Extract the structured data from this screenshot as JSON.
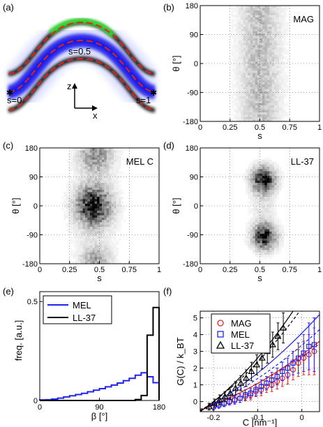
{
  "panel_labels": [
    "(a)",
    "(b)",
    "(c)",
    "(d)",
    "(e)",
    "(f)"
  ],
  "panel_a": {
    "labels": {
      "s0": "s=0",
      "s05": "s=0.5",
      "s1": "s=1",
      "z": "z",
      "x": "x"
    }
  },
  "colors": {
    "red": "#e8221b",
    "blue": "#2222ee",
    "green": "#22cc22",
    "black": "#000000"
  },
  "chart_data": [
    {
      "panel": "b",
      "type": "heatmap",
      "annotation": "MAG",
      "xlabel": "s",
      "ylabel": "θ [°]",
      "xlim": [
        0,
        1
      ],
      "ylim": [
        -180,
        180
      ],
      "xticks": [
        "0",
        "0.25",
        "0.5",
        "0.75",
        "1"
      ],
      "yticks": [
        "-180",
        "-90",
        "0",
        "90",
        "180"
      ],
      "blobs": [
        {
          "s": 0.5,
          "theta": 0,
          "ws": 0.11,
          "wt": 400,
          "amp": 0.28
        }
      ]
    },
    {
      "panel": "c",
      "type": "heatmap",
      "annotation": "MEL C",
      "xlabel": "s",
      "ylabel": "θ [°]",
      "xlim": [
        0,
        1
      ],
      "ylim": [
        -180,
        180
      ],
      "xticks": [
        "0",
        "0.25",
        "0.5",
        "0.75",
        "1"
      ],
      "yticks": [
        "-180",
        "-90",
        "0",
        "90",
        "180"
      ],
      "blobs": [
        {
          "s": 0.45,
          "theta": 0,
          "ws": 0.09,
          "wt": 38,
          "amp": 0.95
        },
        {
          "s": 0.47,
          "theta": 160,
          "ws": 0.09,
          "wt": 35,
          "amp": 0.45
        },
        {
          "s": 0.47,
          "theta": -165,
          "ws": 0.08,
          "wt": 25,
          "amp": 0.35
        },
        {
          "s": 0.46,
          "theta": 0,
          "ws": 0.13,
          "wt": 120,
          "amp": 0.12
        }
      ]
    },
    {
      "panel": "d",
      "type": "heatmap",
      "annotation": "LL-37",
      "xlabel": "s",
      "ylabel": "θ [°]",
      "xlim": [
        0,
        1
      ],
      "ylim": [
        -180,
        180
      ],
      "xticks": [
        "0",
        "0.25",
        "0.5",
        "0.75",
        "1"
      ],
      "yticks": [
        "-180",
        "-90",
        "0",
        "90",
        "180"
      ],
      "blobs": [
        {
          "s": 0.53,
          "theta": 82,
          "ws": 0.065,
          "wt": 26,
          "amp": 1.0
        },
        {
          "s": 0.54,
          "theta": -95,
          "ws": 0.065,
          "wt": 26,
          "amp": 1.0
        },
        {
          "s": 0.53,
          "theta": 0,
          "ws": 0.07,
          "wt": 40,
          "amp": 0.12
        }
      ]
    },
    {
      "panel": "e",
      "type": "line",
      "xlabel": "β [°]",
      "ylabel": "freq. [a.u.]",
      "xlim": [
        0,
        180
      ],
      "ylim": [
        0,
        0.55
      ],
      "xticks": [
        0,
        90,
        180
      ],
      "yticks": [
        0,
        0.5
      ],
      "series": [
        {
          "name": "MEL",
          "color": "#2222ee",
          "edges": [
            0,
            9,
            18,
            27,
            36,
            45,
            54,
            63,
            72,
            81,
            90,
            99,
            108,
            117,
            126,
            135,
            144,
            153,
            162,
            171,
            180
          ],
          "values": [
            0.003,
            0.004,
            0.007,
            0.012,
            0.018,
            0.024,
            0.03,
            0.036,
            0.044,
            0.052,
            0.06,
            0.069,
            0.078,
            0.088,
            0.1,
            0.112,
            0.128,
            0.14,
            0.12,
            0.09
          ]
        },
        {
          "name": "LL-37",
          "color": "#000000",
          "edges": [
            0,
            9,
            18,
            27,
            36,
            45,
            54,
            63,
            72,
            81,
            90,
            99,
            108,
            117,
            126,
            135,
            144,
            153,
            162,
            171,
            180
          ],
          "values": [
            0,
            0,
            0,
            0,
            0,
            0,
            0,
            0,
            0,
            0,
            0,
            0,
            0,
            0,
            0,
            0,
            0.005,
            0.025,
            0.33,
            0.47
          ]
        }
      ]
    },
    {
      "panel": "f",
      "type": "scatter",
      "xlabel": "C [nm⁻¹]",
      "ylabel": "G(C) / k_BT",
      "xlim": [
        -0.23,
        0.04
      ],
      "ylim": [
        -0.6,
        5.4
      ],
      "xticks": [
        -0.2,
        -0.1,
        0
      ],
      "yticks": [
        0,
        1,
        2,
        3,
        4,
        5
      ],
      "series": [
        {
          "name": "MAG",
          "marker": "circle",
          "color": "#e8221b",
          "x": [
            -0.2,
            -0.188,
            -0.176,
            -0.164,
            -0.152,
            -0.14,
            -0.128,
            -0.116,
            -0.104,
            -0.092,
            -0.08,
            -0.068,
            -0.056,
            -0.044,
            -0.032,
            -0.02,
            -0.008,
            0.004,
            0.016,
            0.028
          ],
          "y": [
            -0.3,
            -0.2,
            -0.1,
            0.0,
            0.1,
            0.2,
            0.3,
            0.4,
            0.6,
            0.7,
            0.9,
            1.0,
            1.2,
            1.4,
            1.6,
            1.9,
            2.3,
            2.6,
            2.8,
            3.0
          ],
          "err": [
            0.2,
            0.2,
            0.2,
            0.2,
            0.2,
            0.25,
            0.25,
            0.3,
            0.3,
            0.35,
            0.35,
            0.4,
            0.45,
            0.5,
            0.55,
            0.6,
            0.8,
            1.0,
            1.2,
            1.4
          ],
          "fit_solid": [
            [
              -0.23,
              -0.52
            ],
            [
              0.04,
              3.6
            ]
          ],
          "fit_dashed": [
            [
              -0.23,
              -0.45
            ],
            [
              0.04,
              3.45
            ]
          ]
        },
        {
          "name": "MEL",
          "marker": "square",
          "color": "#2222ee",
          "x": [
            -0.2,
            -0.188,
            -0.176,
            -0.164,
            -0.152,
            -0.14,
            -0.128,
            -0.116,
            -0.104,
            -0.092,
            -0.08,
            -0.068,
            -0.056,
            -0.044,
            -0.032,
            -0.02,
            -0.008,
            0.004,
            0.016,
            0.028
          ],
          "y": [
            -0.3,
            -0.2,
            -0.1,
            0.0,
            0.1,
            0.2,
            0.4,
            0.5,
            0.7,
            0.9,
            1.1,
            1.3,
            1.5,
            1.8,
            2.0,
            2.3,
            2.6,
            2.9,
            3.3,
            3.4
          ],
          "err": [
            0.2,
            0.2,
            0.2,
            0.2,
            0.25,
            0.25,
            0.3,
            0.3,
            0.35,
            0.4,
            0.4,
            0.45,
            0.5,
            0.55,
            0.6,
            0.7,
            0.9,
            1.1,
            1.4,
            1.6
          ],
          "fit_solid": [
            [
              -0.23,
              -0.55
            ],
            [
              0.04,
              5.2
            ]
          ],
          "fit_dashed": [
            [
              -0.23,
              -0.5
            ],
            [
              0.04,
              4.3
            ]
          ]
        },
        {
          "name": "LL-37",
          "marker": "triangle",
          "color": "#000000",
          "x": [
            -0.21,
            -0.198,
            -0.186,
            -0.174,
            -0.162,
            -0.15,
            -0.138,
            -0.126,
            -0.114,
            -0.102,
            -0.09,
            -0.078,
            -0.066,
            -0.054,
            -0.042
          ],
          "y": [
            -0.3,
            -0.1,
            0.1,
            0.3,
            0.5,
            0.8,
            1.1,
            1.4,
            1.8,
            2.2,
            2.6,
            3.0,
            3.4,
            3.9,
            4.4
          ],
          "err": [
            0.2,
            0.25,
            0.3,
            0.3,
            0.35,
            0.4,
            0.45,
            0.5,
            0.55,
            0.6,
            0.65,
            0.7,
            0.75,
            0.8,
            0.9
          ],
          "fit_solid": [
            [
              -0.23,
              -0.6
            ],
            [
              -0.02,
              5.4
            ]
          ],
          "fit_dashed": [
            [
              -0.23,
              -0.55
            ],
            [
              -0.005,
              5.4
            ]
          ]
        }
      ]
    }
  ]
}
